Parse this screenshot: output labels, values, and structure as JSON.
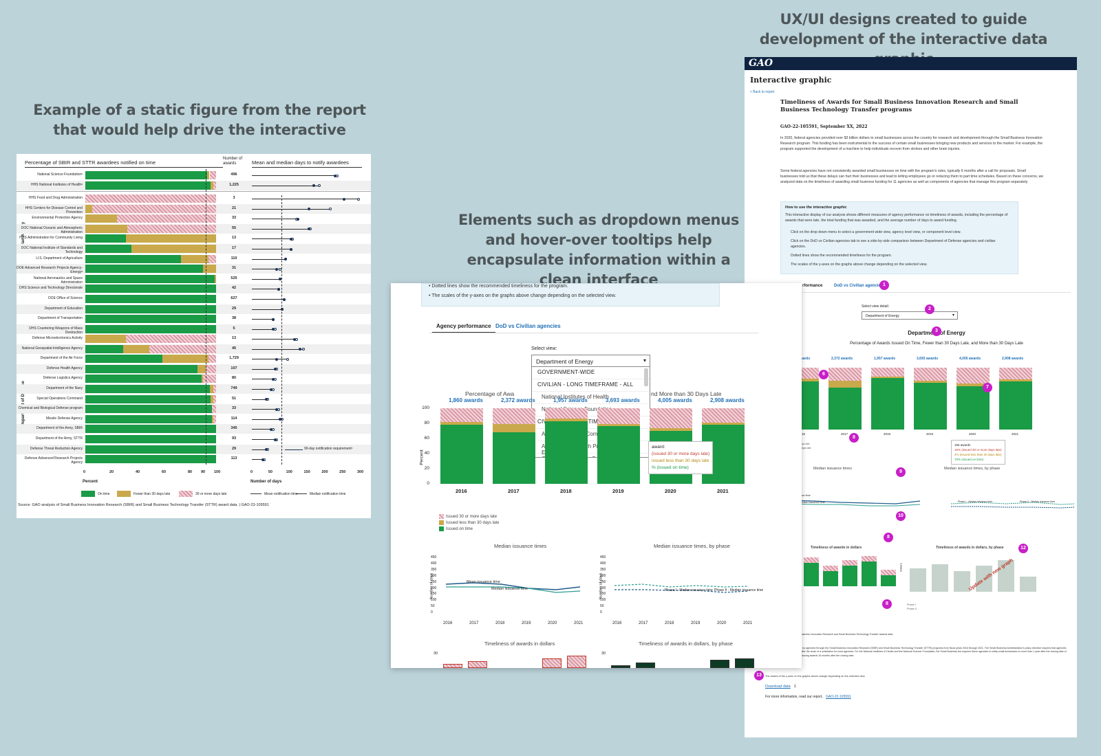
{
  "headings": {
    "static": "Example of a static figure from the report that would help drive the interactive",
    "elements": "Elements such as dropdown menus and hover-over tooltips help encapsulate information within a clean interface",
    "ux": "UX/UI designs created to guide development of the interactive data graphic"
  },
  "static_figure": {
    "title_left": "Percentage of SBIR and STTR awardees notified on time",
    "title_count": "Number of awards",
    "title_right": "Mean and median days to notify awardees",
    "group_civilian": "Civilian Agency",
    "group_defense": "Department of Defense",
    "rows": [
      {
        "name": "National Science Foundationᵃ",
        "on_time": 93,
        "fewer30": 2,
        "over30": 5,
        "awards": "496",
        "mean": 240,
        "median": 235
      },
      {
        "name": "HHS National Institutes of Healthᵃ",
        "on_time": 96,
        "fewer30": 2,
        "over30": 2,
        "awards": "1,225",
        "mean": 190,
        "median": 175
      },
      {
        "name": "HHS Food and Drug Administration",
        "on_time": 0,
        "fewer30": 0,
        "over30": 100,
        "awards": "3",
        "mean": 300,
        "median": 260
      },
      {
        "name": "HHS Centers for Disease Control and Prevention",
        "on_time": 0,
        "fewer30": 5,
        "over30": 95,
        "awards": "21",
        "mean": 220,
        "median": 160
      },
      {
        "name": "Environmental Protection Agency",
        "on_time": 0,
        "fewer30": 24,
        "over30": 76,
        "awards": "33",
        "mean": 125,
        "median": 130
      },
      {
        "name": "DOC National Oceanic and Atmospheric Administration",
        "on_time": 0,
        "fewer30": 32,
        "over30": 68,
        "awards": "55",
        "mean": 165,
        "median": 160
      },
      {
        "name": "HHS Administration for Community Living",
        "on_time": 31,
        "fewer30": 69,
        "over30": 0,
        "awards": "13",
        "mean": 115,
        "median": 110
      },
      {
        "name": "DOC National Institute of Standards and Technology",
        "on_time": 35,
        "fewer30": 65,
        "over30": 0,
        "awards": "17",
        "mean": 110,
        "median": 110
      },
      {
        "name": "U.S. Department of Agriculture",
        "on_time": 73,
        "fewer30": 21,
        "over30": 6,
        "awards": "110",
        "mean": 95,
        "median": 95
      },
      {
        "name": "DOE Advanced Research Projects Agency-Energyᵃ",
        "on_time": 90,
        "fewer30": 10,
        "over30": 0,
        "awards": "31",
        "mean": 80,
        "median": 70
      },
      {
        "name": "National Aeronautics and Space Administration",
        "on_time": 99,
        "fewer30": 1,
        "over30": 0,
        "awards": "525",
        "mean": 80,
        "median": 80
      },
      {
        "name": "DHS Science and Technology Directorate",
        "on_time": 100,
        "fewer30": 0,
        "over30": 0,
        "awards": "42",
        "mean": 75,
        "median": 75
      },
      {
        "name": "DOE Office of Science",
        "on_time": 100,
        "fewer30": 0,
        "over30": 0,
        "awards": "627",
        "mean": 90,
        "median": 90
      },
      {
        "name": "Department of Education",
        "on_time": 100,
        "fewer30": 0,
        "over30": 0,
        "awards": "29",
        "mean": 85,
        "median": 85
      },
      {
        "name": "Department of Transportation",
        "on_time": 100,
        "fewer30": 0,
        "over30": 0,
        "awards": "38",
        "mean": 60,
        "median": 60
      },
      {
        "name": "DHS Countering Weapons of Mass Destruction",
        "on_time": 100,
        "fewer30": 0,
        "over30": 0,
        "awards": "5",
        "mean": 65,
        "median": 60
      },
      {
        "name": "Defense Microelectronics Activity",
        "on_time": 0,
        "fewer30": 31,
        "over30": 69,
        "awards": "13",
        "mean": 125,
        "median": 120
      },
      {
        "name": "National Geospatial-Intelligence Agency",
        "on_time": 29,
        "fewer30": 20,
        "over30": 51,
        "awards": "45",
        "mean": 145,
        "median": 135
      },
      {
        "name": "Department of the Air Force",
        "on_time": 59,
        "fewer30": 35,
        "over30": 6,
        "awards": "1,729",
        "mean": 100,
        "median": 70
      },
      {
        "name": "Defense Health Agency",
        "on_time": 86,
        "fewer30": 6,
        "over30": 8,
        "awards": "107",
        "mean": 70,
        "median": 65
      },
      {
        "name": "Defense Logistics Agency",
        "on_time": 89,
        "fewer30": 1,
        "over30": 10,
        "awards": "80",
        "mean": 65,
        "median": 60
      },
      {
        "name": "Department of the Navy",
        "on_time": 95,
        "fewer30": 3,
        "over30": 2,
        "awards": "749",
        "mean": 60,
        "median": 55
      },
      {
        "name": "Special Operations Command",
        "on_time": 96,
        "fewer30": 2,
        "over30": 2,
        "awards": "51",
        "mean": 45,
        "median": 40
      },
      {
        "name": "Chemical and Biological Defense program",
        "on_time": 97,
        "fewer30": 0,
        "over30": 3,
        "awards": "33",
        "mean": 75,
        "median": 70
      },
      {
        "name": "Missile Defense Agency",
        "on_time": 97,
        "fewer30": 1,
        "over30": 2,
        "awards": "114",
        "mean": 85,
        "median": 80
      },
      {
        "name": "Department of the Army, SBIR",
        "on_time": 100,
        "fewer30": 0,
        "over30": 0,
        "awards": "345",
        "mean": 60,
        "median": 55
      },
      {
        "name": "Department of the Army, STTR",
        "on_time": 100,
        "fewer30": 0,
        "over30": 0,
        "awards": "93",
        "mean": 70,
        "median": 65
      },
      {
        "name": "Defense Threat Reduction Agency",
        "on_time": 100,
        "fewer30": 0,
        "over30": 0,
        "awards": "29",
        "mean": 45,
        "median": 40
      },
      {
        "name": "Defense Advanced Research Projects Agency",
        "on_time": 100,
        "fewer30": 0,
        "over30": 0,
        "awards": "113",
        "mean": 35,
        "median": 30
      }
    ],
    "x_ticks_pct": [
      "0",
      "20",
      "40",
      "60",
      "80",
      "90",
      "100"
    ],
    "x_ticks_days": [
      "0",
      "50",
      "100",
      "150",
      "200",
      "250",
      "300"
    ],
    "xlabel_pct": "Percent",
    "xlabel_days": "Number of days",
    "req_label": "90-day notification requirementᶜ",
    "legend": [
      "On time",
      "Fewer than 30 days late",
      "30 or more days late",
      "Mean notification time",
      "Median notification time"
    ],
    "source": "Source: GAO analysis of Small Business Innovation Research (SBIR) and Small Business Technology Transfer (STTR) award data.  |  GAO-23-105591",
    "colors": {
      "on_time": "#1a9b46",
      "fewer30": "#c9a94b",
      "over30": "#d99aa6"
    }
  },
  "mid": {
    "bullet1": "Dotted lines show the recommended timeliness for the program.",
    "bullet2": "The scales of the y-axes on the graphs above change depending on the selected view.",
    "tab_agency": "Agency performance",
    "tab_dod": "DoD vs Civilian agencies",
    "select_label": "Select view:",
    "select_value": "Department of Energy",
    "dropdown_options": [
      {
        "label": "GOVERNMENT-WIDE",
        "type": "group"
      },
      {
        "label": "CIVILIAN - LONG TIMEFRAME - ALL",
        "type": "group"
      },
      {
        "label": "National Institutes of Health",
        "type": "sub"
      },
      {
        "label": "National Science Foundation",
        "type": "sub"
      },
      {
        "label": "CIVILIAN - SHORT TIMEFRAME - ALL",
        "type": "group"
      },
      {
        "label": "Administration for Community Living",
        "type": "sub"
      },
      {
        "label": "Advanced Research Projects Agency-Energy",
        "type": "sub"
      },
      {
        "label": "Centers for Disease Control and Prevention",
        "type": "sub"
      }
    ],
    "chart_title_left": "Percentage of Awa",
    "chart_title_right": "nd More than 30 Days Late",
    "y_label": "Percent",
    "tooltip_head": "award:",
    "tooltip_lines": [
      "(issued 30 or more days late)",
      "issued less than 30 days late",
      "% (issued on time)"
    ],
    "legend": [
      "Issued 30 or more days late",
      "Issued less than 30 days late",
      "Issued on time"
    ],
    "median_title": "Median issuance times",
    "median_phase_title": "Median issuance times, by phase",
    "dollars_title": "Timeliness of awards in dollars",
    "dollars_phase_title": "Timeliness of awards in dollars, by phase",
    "mean_label": "Mean issuance time",
    "median_label": "Median issuance time",
    "days_label": "Number of days",
    "phase_label1": "Phase I - Median issuance time",
    "phase_label2": "Phase II - Median issuance time",
    "line_y_ticks": [
      "450",
      "400",
      "350",
      "300",
      "250",
      "200",
      "150",
      "100",
      "50",
      "0"
    ],
    "line_x_ticks": [
      "2016",
      "2017",
      "2018",
      "2019",
      "2020",
      "2021"
    ],
    "dollars_y_tick": "30"
  },
  "chart_data": {
    "type": "bar",
    "title": "Percentage of Awards Issued On Time, Fewer than 30 Days Late, and More than 30 Days Late",
    "categories": [
      "2016",
      "2017",
      "2018",
      "2019",
      "2020",
      "2021"
    ],
    "award_labels": [
      "1,860 awards",
      "2,372 awards",
      "1,957 awards",
      "3,693 awards",
      "4,005 awards",
      "2,908 awards"
    ],
    "series": [
      {
        "name": "Issued on time",
        "values": [
          78,
          68,
          83,
          76,
          70,
          78
        ]
      },
      {
        "name": "Issued less than 30 days late",
        "values": [
          4,
          11,
          3,
          3,
          4,
          3
        ]
      },
      {
        "name": "Issued 30 or more days late",
        "values": [
          18,
          21,
          14,
          21,
          26,
          19
        ]
      }
    ],
    "ylabel": "Percent",
    "ylim": [
      0,
      100
    ],
    "y_ticks": [
      "0",
      "20",
      "40",
      "60",
      "80",
      "100"
    ]
  },
  "ux": {
    "logo": "GAO",
    "page_title": "Interactive graphic",
    "back": "< Back to report",
    "title": "Timeliness of Awards for Small Business Innovation Research and Small Business Technology Transfer programs",
    "report_id": "GAO-22-105591, September XX, 2022",
    "para1": "In 2020, federal agencies provided over $3 billion dollars to small businesses across the country for research and development through the Small Business Innovation Research program. This funding has been instrumental to the success of certain small businesses bringing new products and services to the market. For example, the program supported the development of a machine to help individuals recover from strokes and other brain injuries.",
    "para2": "Some federal agencies have not consistently awarded small businesses on time with the program's rules, typically 6 months after a call for proposals. Small businesses told us that these delays can hurt their businesses and lead to letting employees go or reducing them to part time schedules. Based on these concerns, we analyzed data on the timeliness of awarding small business funding for 11 agencies as well as components of agencies that manage this program separately.",
    "how_title": "How to use the interactive graphic",
    "how_intro": "This interactive display of our analysis shows different measures of agency performance on timeliness of awards, including the percentage of awards that were late, the total funding that was awarded, and the average number of days to award funding.",
    "how_bullets": [
      "Click on the drop down menu to select a government wide view, agency level view, or component level view.",
      "Click on the DoD vs Civilian agencies tab to see a side-by-side comparison between Department of Defense agencies and civilian agencies.",
      "Dotted lines show the recommended timeliness for the program.",
      "The scales of the y-axes on the graphs above change depending on the selected view."
    ],
    "tab_perf": "rformance",
    "tab_dod": "DoD vs Civilian agencies",
    "select_label": "Select view detail:",
    "select_value": "Department of Energy",
    "agency_title": "Department of Energy",
    "chart_title": "Percentage of Awards Issued On Time, Fewer than 30 Days Late, and More than 30 Days Late",
    "awards": [
      "1,860 awards",
      "2,372 awards",
      "1,957 awards",
      "3,693 awards",
      "4,005 awards",
      "2,908 awards"
    ],
    "years": [
      "2016",
      "2017",
      "2018",
      "2019",
      "2020",
      "2021"
    ],
    "tooltip_head": "156 awards",
    "tooltip_lines": [
      "16% (issued 30 or more days late)",
      "4% (issued less than 30 days late)",
      "70% (issued on time)"
    ],
    "legend_small": [
      "30 or more days late",
      "less than 30 days late",
      "on time"
    ],
    "median_title": "Median issuance times",
    "median_phase_title": "Median issuance times, by phase",
    "mean_label": "Mean issuance time",
    "median_label": "Median issuance time",
    "phase1_label": "Phase I - Median issuance time",
    "phase2_label": "Phase II - Median issuance time",
    "dollars_title": "Timeliness of awards in dollars",
    "dollars_phase_title": "Timeliness of awards in dollars, by phase",
    "dollars_label": "Dollars",
    "update_note": "Update with new graph",
    "phase_legend": [
      "Phase I",
      "Phase II"
    ],
    "source_note": "Source: GAO analysis of Small Business Innovation Research and Small Business Technology Transfer awards data.",
    "footnote": "Note: This includes awards made by agencies through the Small Business Innovation Research (SBIR) and Small Business Technology Transfer (STTR) programs from fiscal years 2016 through 2021. The Small Business Administration's policy directive requires that agencies notify small businesses 90 days after the close of a solicitation for most agencies. For the National Institutes of Health and the National Science Foundation, the Small Business Act requires these agencies to notify small businesses no more than 1 year after the closing date of the solicitation and recommends issuing awards 15 months after the closing date.",
    "axis_note": "The scales of the y-axes on the graphs above change depending on the selected view.",
    "download": "Download data",
    "more_info": "For more information, read our report,",
    "report_link": "GAO-22-105591",
    "badges": [
      "1",
      "2",
      "3",
      "4",
      "6",
      "7",
      "8",
      "9",
      "10",
      "8",
      "12",
      "8",
      "13"
    ],
    "badge_color": "#c81fc8"
  }
}
